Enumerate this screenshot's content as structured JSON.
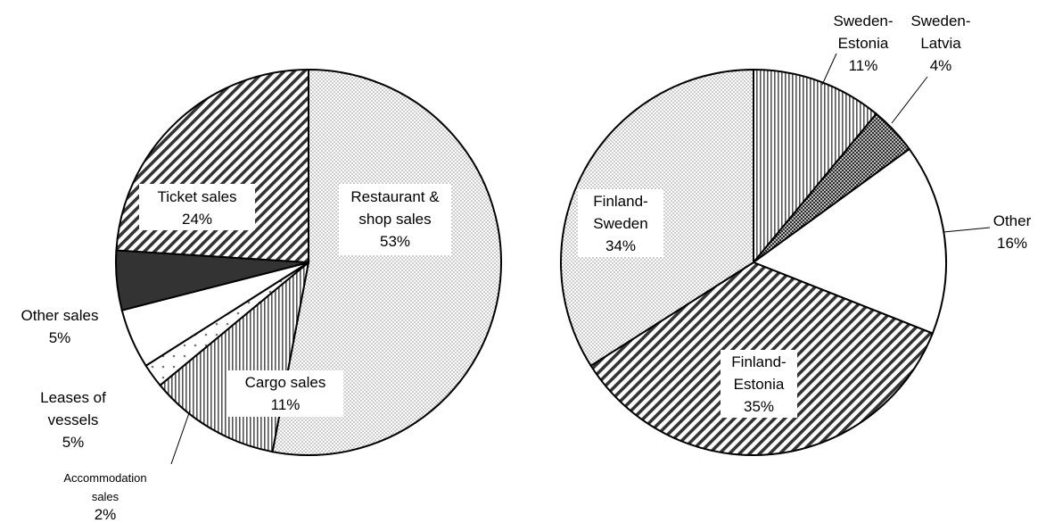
{
  "chart_data": [
    {
      "type": "pie",
      "title": "",
      "slices": [
        {
          "label": "Restaurant & shop sales",
          "value": 53,
          "label_text": "53%",
          "pattern": "dots"
        },
        {
          "label": "Cargo sales",
          "value": 11,
          "label_text": "11%",
          "pattern": "vertical-lines"
        },
        {
          "label": "Accommodation sales",
          "value": 2,
          "label_text": "2%",
          "pattern": "sparse-dots"
        },
        {
          "label": "Leases of vessels",
          "value": 5,
          "label_text": "5%",
          "pattern": "white"
        },
        {
          "label": "Other sales",
          "value": 5,
          "label_text": "5%",
          "pattern": "dark"
        },
        {
          "label": "Ticket sales",
          "value": 24,
          "label_text": "24%",
          "pattern": "diagonal-stripes"
        }
      ],
      "label_lines": {
        "restaurant": [
          "Restaurant &",
          "shop sales",
          "53%"
        ],
        "cargo": [
          "Cargo sales",
          "11%"
        ],
        "accommodation": [
          "Accommodation",
          "sales",
          "2%"
        ],
        "leases": [
          "Leases of",
          "vessels",
          "5%"
        ],
        "other": [
          "Other sales",
          "5%"
        ],
        "ticket": [
          "Ticket sales",
          "24%"
        ]
      }
    },
    {
      "type": "pie",
      "title": "",
      "slices": [
        {
          "label": "Sweden-Estonia",
          "value": 11,
          "label_text": "11%",
          "pattern": "vertical-lines"
        },
        {
          "label": "Sweden-Latvia",
          "value": 4,
          "label_text": "4%",
          "pattern": "checker"
        },
        {
          "label": "Other",
          "value": 16,
          "label_text": "16%",
          "pattern": "white"
        },
        {
          "label": "Finland-Estonia",
          "value": 35,
          "label_text": "35%",
          "pattern": "diagonal-stripes"
        },
        {
          "label": "Finland-Sweden",
          "value": 34,
          "label_text": "34%",
          "pattern": "dots"
        }
      ],
      "label_lines": {
        "sweden_estonia": [
          "Sweden-",
          "Estonia",
          "11%"
        ],
        "sweden_latvia": [
          "Sweden-",
          "Latvia",
          "4%"
        ],
        "other": [
          "Other",
          "16%"
        ],
        "finland_estonia": [
          "Finland-",
          "Estonia",
          "35%"
        ],
        "finland_sweden": [
          "Finland-",
          "Sweden",
          "34%"
        ]
      }
    }
  ],
  "colors": {
    "outline": "#000000",
    "dots": "#9a9a9a",
    "dark": "#333333",
    "background": "#ffffff"
  }
}
